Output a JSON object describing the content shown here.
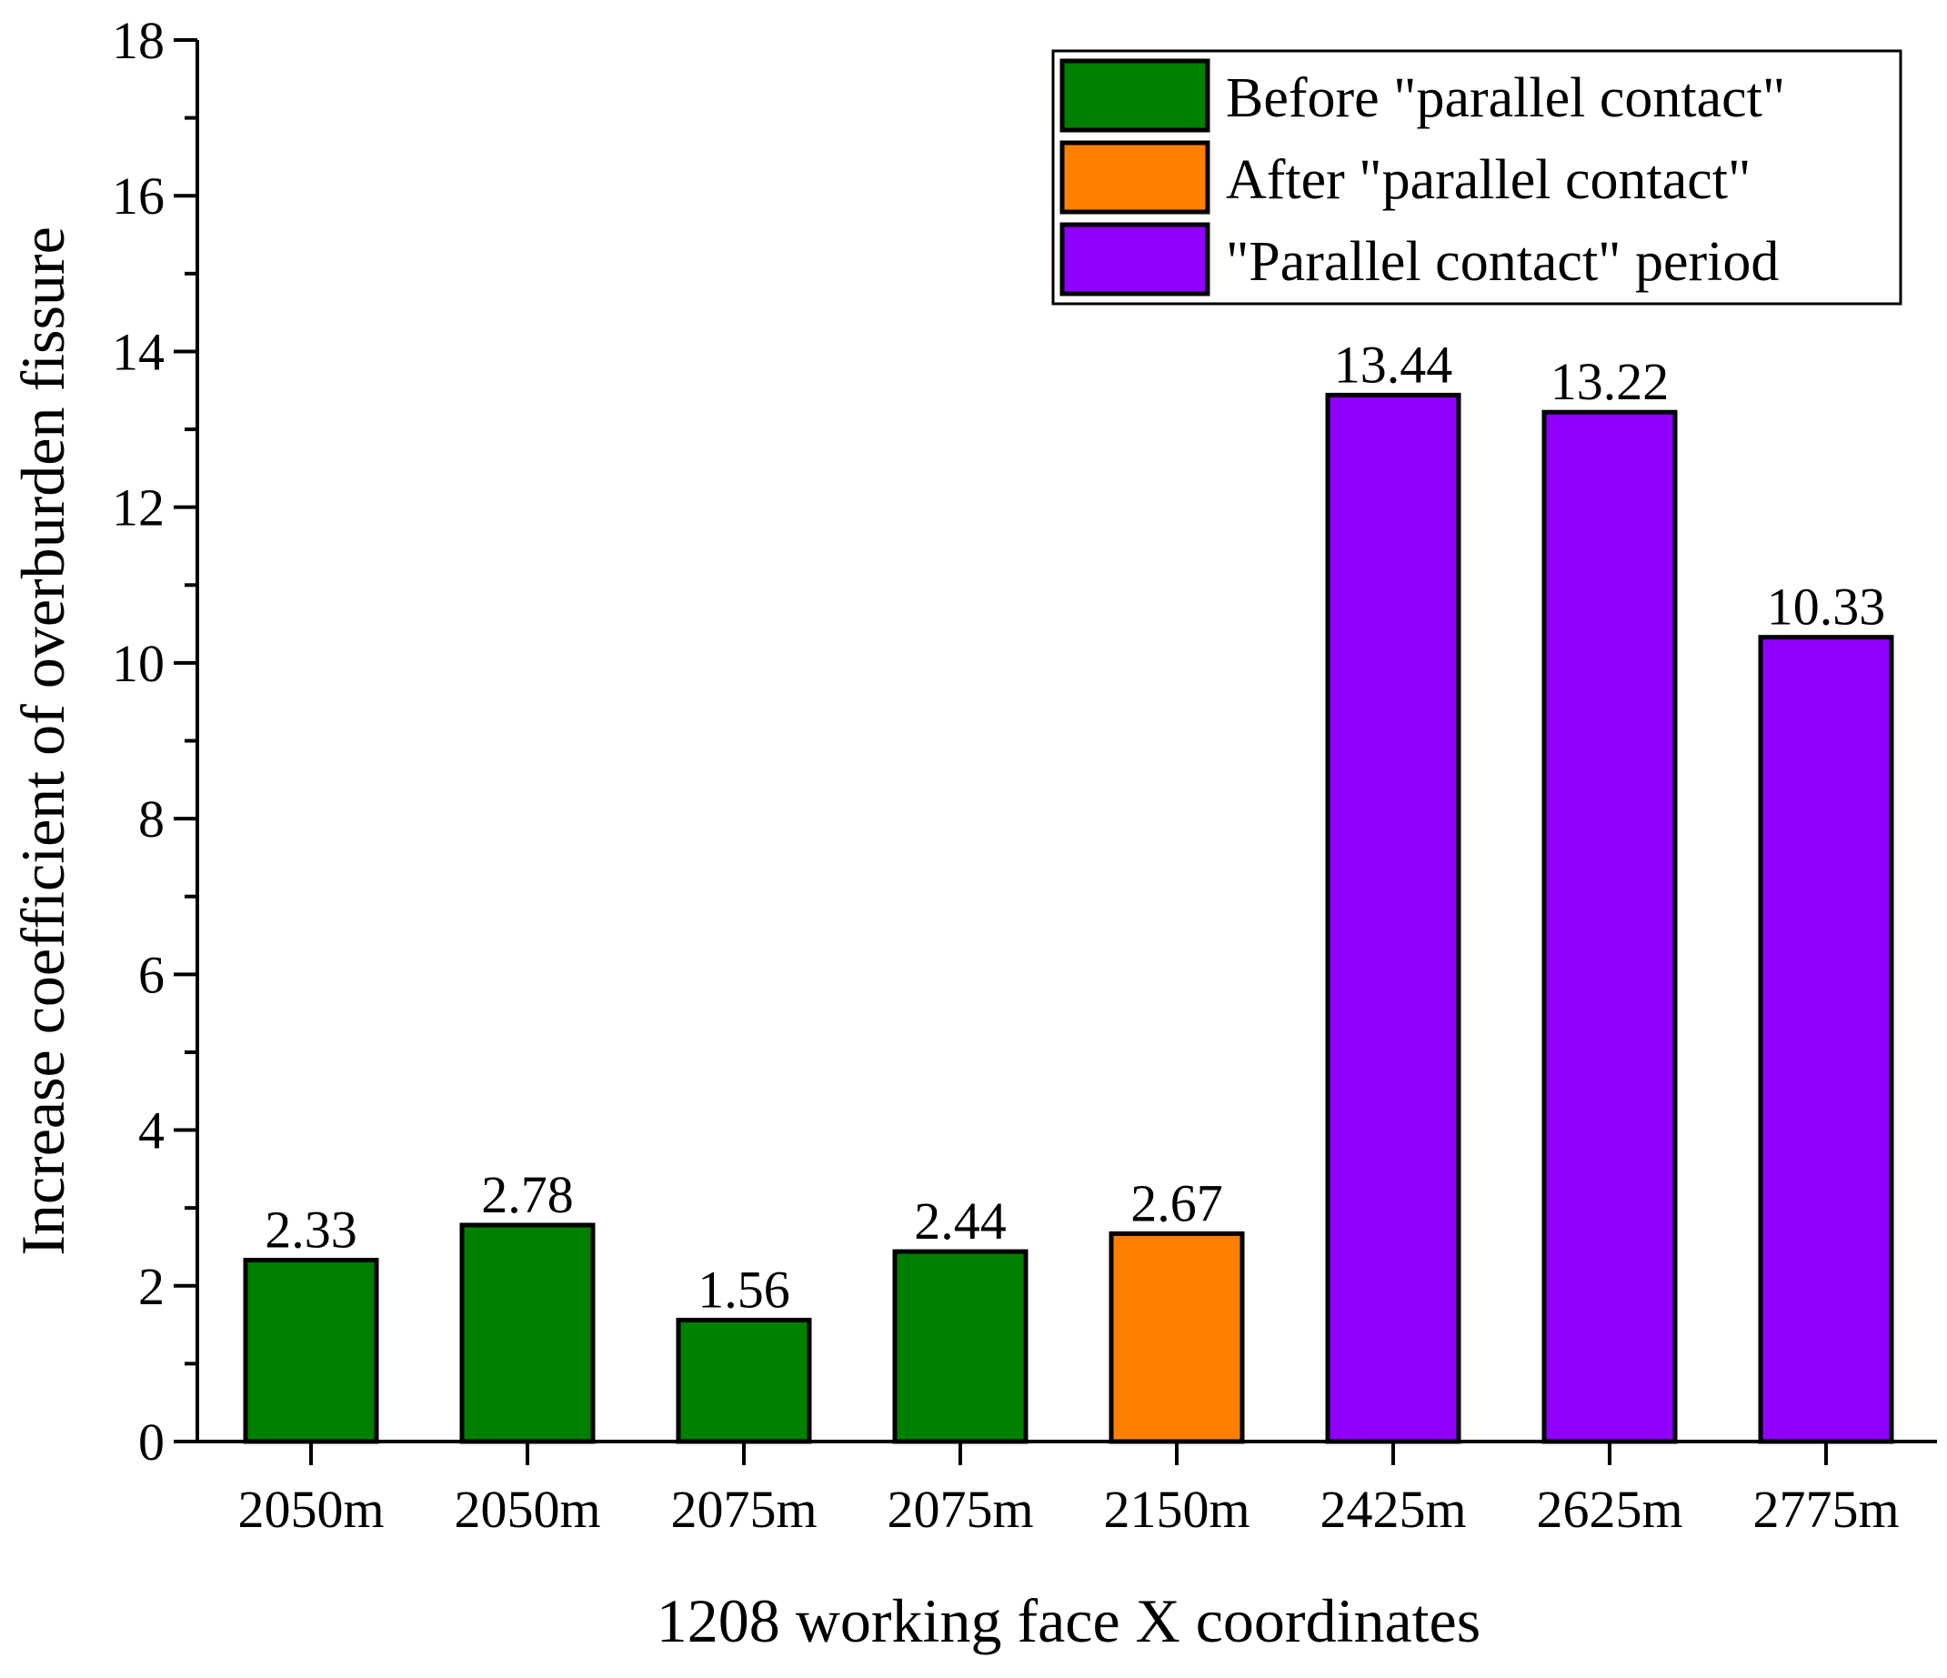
{
  "chart_data": {
    "type": "bar",
    "title": "",
    "xlabel": "1208 working face X coordinates",
    "ylabel": "Increase coefficient of overburden fissure",
    "ylim": [
      0,
      18
    ],
    "yticks": [
      0,
      2,
      4,
      6,
      8,
      10,
      12,
      14,
      16,
      18
    ],
    "categories": [
      "2050m",
      "2050m",
      "2075m",
      "2075m",
      "2150m",
      "2425m",
      "2625m",
      "2775m"
    ],
    "values": [
      2.33,
      2.78,
      1.56,
      2.44,
      2.67,
      13.44,
      13.22,
      10.33
    ],
    "value_labels": [
      "2.33",
      "2.78",
      "1.56",
      "2.44",
      "2.67",
      "13.44",
      "13.22",
      "10.33"
    ],
    "bar_groups": [
      0,
      0,
      0,
      0,
      1,
      2,
      2,
      2
    ],
    "legend": {
      "placement": "top-right",
      "entries": [
        {
          "label": "Before \"parallel contact\"",
          "color": "#008000"
        },
        {
          "label": "After \"parallel contact\"",
          "color": "#ff8000"
        },
        {
          "label": "\"Parallel contact\" period",
          "color": "#8f00ff"
        }
      ]
    },
    "grid": false
  }
}
